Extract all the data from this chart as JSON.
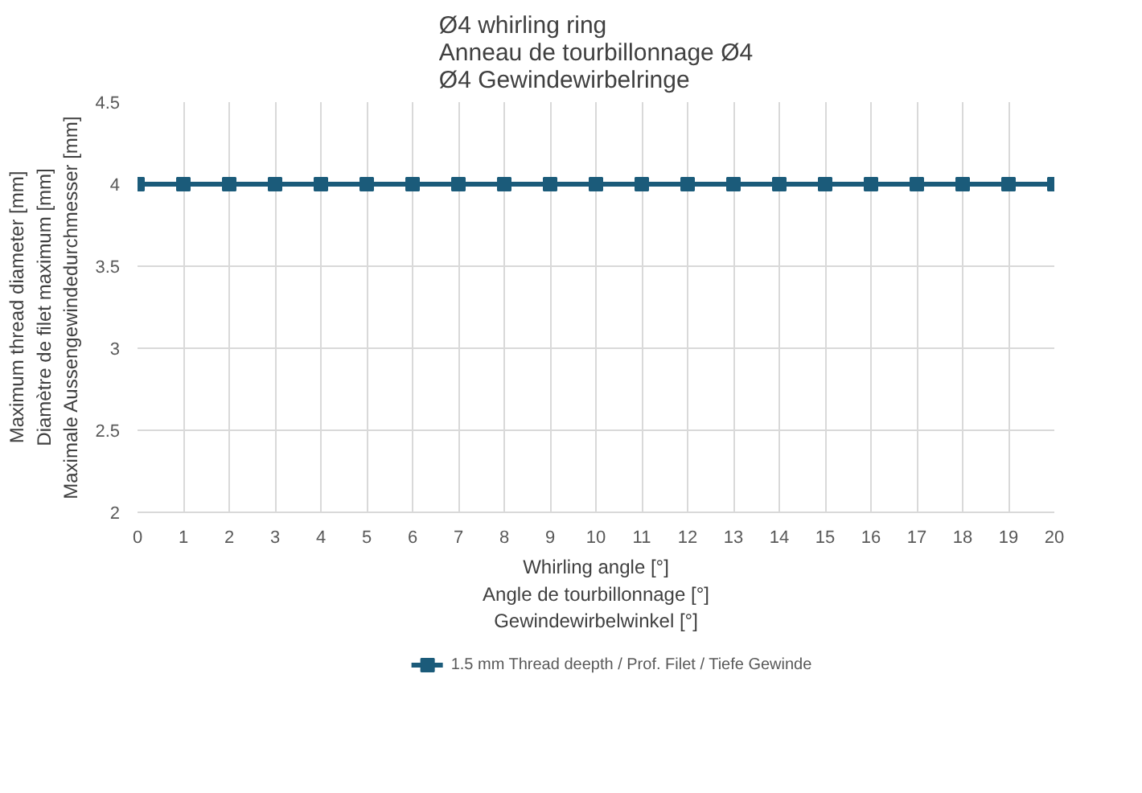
{
  "chart_data": {
    "type": "line",
    "title": "Ø4 whirling ring\nAnneau de tourbillonnage Ø4\nØ4 Gewindewirbelringe",
    "xlabel": "Whirling angle [°]\nAngle de tourbillonnage [°]\nGewindewirbelwinkel [°]",
    "ylabel": "Maximum thread diameter [mm]\nDiamètre de filet maximum [mm]\nMaximale Aussengewindedurchmesser [mm]",
    "x": [
      0,
      1,
      2,
      3,
      4,
      5,
      6,
      7,
      8,
      9,
      10,
      11,
      12,
      13,
      14,
      15,
      16,
      17,
      18,
      19,
      20
    ],
    "series": [
      {
        "name": "1.5 mm Thread deepth / Prof. Filet / Tiefe Gewinde",
        "color": "#1b5b7a",
        "values": [
          4,
          4,
          4,
          4,
          4,
          4,
          4,
          4,
          4,
          4,
          4,
          4,
          4,
          4,
          4,
          4,
          4,
          4,
          4,
          4,
          4
        ]
      }
    ],
    "xlim": [
      0,
      20
    ],
    "xticks": [
      0,
      1,
      2,
      3,
      4,
      5,
      6,
      7,
      8,
      9,
      10,
      11,
      12,
      13,
      14,
      15,
      16,
      17,
      18,
      19,
      20
    ],
    "ylim": [
      2,
      4.5
    ],
    "yticks": [
      2,
      2.5,
      3,
      3.5,
      4,
      4.5
    ],
    "grid": true,
    "legend": "bottom",
    "marker": "square",
    "line_style": "solid"
  }
}
